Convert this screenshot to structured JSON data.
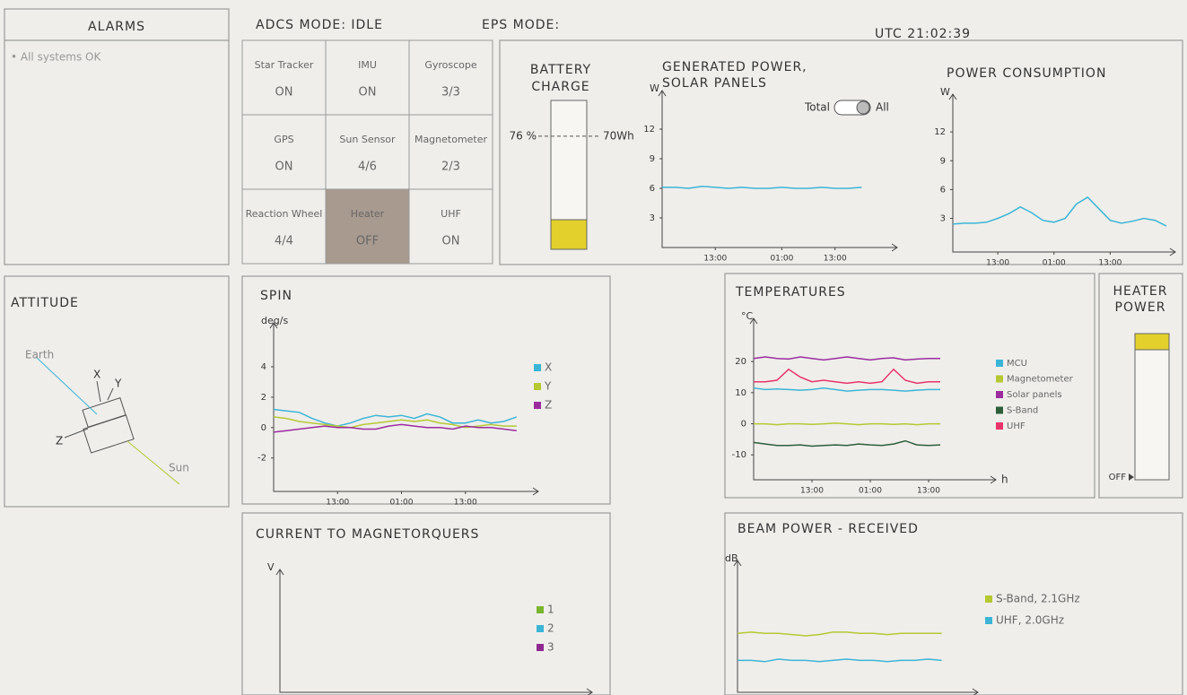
{
  "header": {
    "alarms_title": "ALARMS",
    "adcs_mode": "ADCS MODE: IDLE",
    "eps_mode": "EPS MODE:",
    "utc": "UTC 21:02:39"
  },
  "alarms": [
    "• All systems OK"
  ],
  "adcs_tiles": [
    {
      "name": "Star Tracker",
      "status": "ON"
    },
    {
      "name": "IMU",
      "status": "ON"
    },
    {
      "name": "Gyroscope",
      "status": "3/3"
    },
    {
      "name": "GPS",
      "status": "ON"
    },
    {
      "name": "Sun Sensor",
      "status": "4/6"
    },
    {
      "name": "Magnetometer",
      "status": "2/3"
    },
    {
      "name": "Reaction Wheel",
      "status": "4/4"
    },
    {
      "name": "Heater",
      "status": "OFF",
      "color": "#a89a8f"
    },
    {
      "name": "UHF",
      "status": "ON"
    }
  ],
  "battery": {
    "title": [
      "BATTERY",
      "CHARGE"
    ],
    "marker": {
      "value": 76,
      "label": "76 %"
    },
    "energy_label": "70Wh",
    "color": "#e3d02c"
  },
  "generated_power": {
    "type": "line",
    "title": [
      "GENERATED POWER,",
      "SOLAR PANELS"
    ],
    "y_label": "W",
    "toggle": {
      "left": "Total",
      "right": "All"
    },
    "xlim": [
      0,
      17
    ],
    "ylim": [
      0,
      15
    ],
    "yticks": [
      3,
      6,
      9,
      12
    ],
    "xticks": [
      {
        "value": 4,
        "label": "13:00"
      },
      {
        "value": 9,
        "label": "01:00"
      },
      {
        "value": 13,
        "label": "13:00"
      }
    ],
    "series": [
      {
        "color": "#3bb5d6",
        "values": [
          6.1,
          6.1,
          6.0,
          6.2,
          6.1,
          6.0,
          6.1,
          6.0,
          6.0,
          6.1,
          6.0,
          6.0,
          6.1,
          6.0,
          6.0,
          6.1
        ]
      }
    ]
  },
  "power_consumption": {
    "type": "line",
    "title": "POWER CONSUMPTION",
    "y_label": "W",
    "xlim": [
      0,
      19
    ],
    "ylim": [
      -0.5,
      15
    ],
    "yticks": [
      3,
      6,
      9,
      12
    ],
    "xticks": [
      {
        "value": 4,
        "label": "13:00"
      },
      {
        "value": 9,
        "label": "01:00"
      },
      {
        "value": 14,
        "label": "13:00"
      }
    ],
    "series": [
      {
        "color": "#3bb5d6",
        "values": [
          2.4,
          2.5,
          2.5,
          2.6,
          3.0,
          3.5,
          4.2,
          3.6,
          2.8,
          2.6,
          3.0,
          4.5,
          5.2,
          4.0,
          2.8,
          2.5,
          2.7,
          3.0,
          2.8,
          2.2
        ]
      }
    ]
  },
  "attitude": {
    "title": "ATTITUDE",
    "labels": {
      "earth": "Earth",
      "sun": "Sun",
      "x": "X",
      "y": "Y",
      "z": "Z"
    }
  },
  "spin": {
    "type": "line",
    "title": "SPIN",
    "y_label": "deg/s",
    "xlim": [
      0,
      20
    ],
    "ylim": [
      -4.2,
      6.3
    ],
    "yticks": [
      -2,
      0,
      2,
      4
    ],
    "xticks": [
      {
        "value": 5,
        "label": "13:00"
      },
      {
        "value": 10,
        "label": "01:00"
      },
      {
        "value": 15,
        "label": "13:00"
      }
    ],
    "series": [
      {
        "name": "X",
        "color": "#3bb5d6",
        "values": [
          1.2,
          1.1,
          1.0,
          0.6,
          0.3,
          0.1,
          0.3,
          0.6,
          0.8,
          0.7,
          0.8,
          0.6,
          0.9,
          0.7,
          0.3,
          0.3,
          0.5,
          0.3,
          0.4,
          0.7
        ]
      },
      {
        "name": "Y",
        "color": "#b5c832",
        "values": [
          0.7,
          0.6,
          0.4,
          0.3,
          0.2,
          0.1,
          0.0,
          0.2,
          0.3,
          0.4,
          0.5,
          0.4,
          0.5,
          0.3,
          0.2,
          0.0,
          0.1,
          0.2,
          0.1,
          0.1
        ]
      },
      {
        "name": "Z",
        "color": "#9b2c9e",
        "values": [
          -0.3,
          -0.2,
          -0.1,
          0.0,
          0.1,
          0.0,
          0.0,
          -0.1,
          -0.1,
          0.1,
          0.2,
          0.1,
          0.0,
          0.0,
          -0.1,
          0.1,
          0.0,
          0.0,
          -0.1,
          -0.2
        ]
      }
    ]
  },
  "temperatures": {
    "type": "line",
    "title": "TEMPERATURES",
    "y_label": "°C",
    "x_label": "h",
    "xlim": [
      0,
      20
    ],
    "ylim": [
      -18,
      31
    ],
    "yticks": [
      -10,
      0,
      10,
      20
    ],
    "xticks": [
      {
        "value": 5,
        "label": "13:00"
      },
      {
        "value": 10,
        "label": "01:00"
      },
      {
        "value": 15,
        "label": "13:00"
      }
    ],
    "series": [
      {
        "name": "MCU",
        "color": "#3bb5d6",
        "values": [
          11.5,
          11,
          11.2,
          11,
          10.8,
          11,
          11.5,
          11,
          10.5,
          10.8,
          11,
          11,
          10.8,
          10.5,
          10.8,
          11,
          11
        ]
      },
      {
        "name": "Magnetometer",
        "color": "#b5c832",
        "values": [
          0,
          0,
          -0.3,
          0,
          0,
          -0.2,
          0,
          0.2,
          0,
          -0.3,
          0,
          0,
          -0.2,
          0,
          -0.3,
          0,
          0
        ]
      },
      {
        "name": "Solar panels",
        "color": "#9b2c9e",
        "values": [
          21,
          21.5,
          21,
          20.8,
          21.5,
          21,
          20.5,
          21,
          21.5,
          21,
          20.5,
          21,
          21.2,
          20.5,
          20.8,
          21,
          21
        ]
      },
      {
        "name": "S-Band",
        "color": "#2e5e3a",
        "values": [
          -6,
          -6.5,
          -7,
          -7,
          -6.8,
          -7.2,
          -7,
          -6.8,
          -7,
          -6.5,
          -6.8,
          -7,
          -6.5,
          -5.5,
          -6.8,
          -7,
          -6.8
        ]
      },
      {
        "name": "UHF",
        "color": "#e8336b",
        "values": [
          13.5,
          13.5,
          14,
          17.5,
          15,
          13.5,
          14,
          13.5,
          13,
          13.5,
          13,
          13.5,
          17.5,
          14,
          13,
          13.5,
          13.5
        ]
      }
    ]
  },
  "heater_power": {
    "title": [
      "HEATER",
      "POWER"
    ],
    "off_label": "OFF",
    "color": "#e3d02c"
  },
  "current": {
    "type": "line",
    "title": "CURRENT TO MAGNETORQUERS",
    "y_label": "V",
    "series": [
      {
        "name": "1",
        "color": "#7ab52e"
      },
      {
        "name": "2",
        "color": "#3bb5d6"
      },
      {
        "name": "3",
        "color": "#8e2a8f"
      }
    ]
  },
  "beam_power": {
    "type": "line",
    "title": "BEAM POWER - RECEIVED",
    "y_label": "dB",
    "xlim": [
      0,
      17
    ],
    "ylim": [
      0,
      10
    ],
    "series": [
      {
        "name": "S-Band, 2.1GHz",
        "color": "#b5c832",
        "values": [
          4.8,
          4.9,
          4.8,
          4.8,
          4.7,
          4.6,
          4.7,
          4.9,
          4.9,
          4.8,
          4.8,
          4.7,
          4.8,
          4.8,
          4.8,
          4.8
        ]
      },
      {
        "name": "UHF, 2.0GHz",
        "color": "#3bb5d6",
        "values": [
          2.6,
          2.6,
          2.5,
          2.7,
          2.6,
          2.6,
          2.5,
          2.6,
          2.7,
          2.6,
          2.6,
          2.5,
          2.6,
          2.6,
          2.7,
          2.6
        ]
      }
    ]
  }
}
